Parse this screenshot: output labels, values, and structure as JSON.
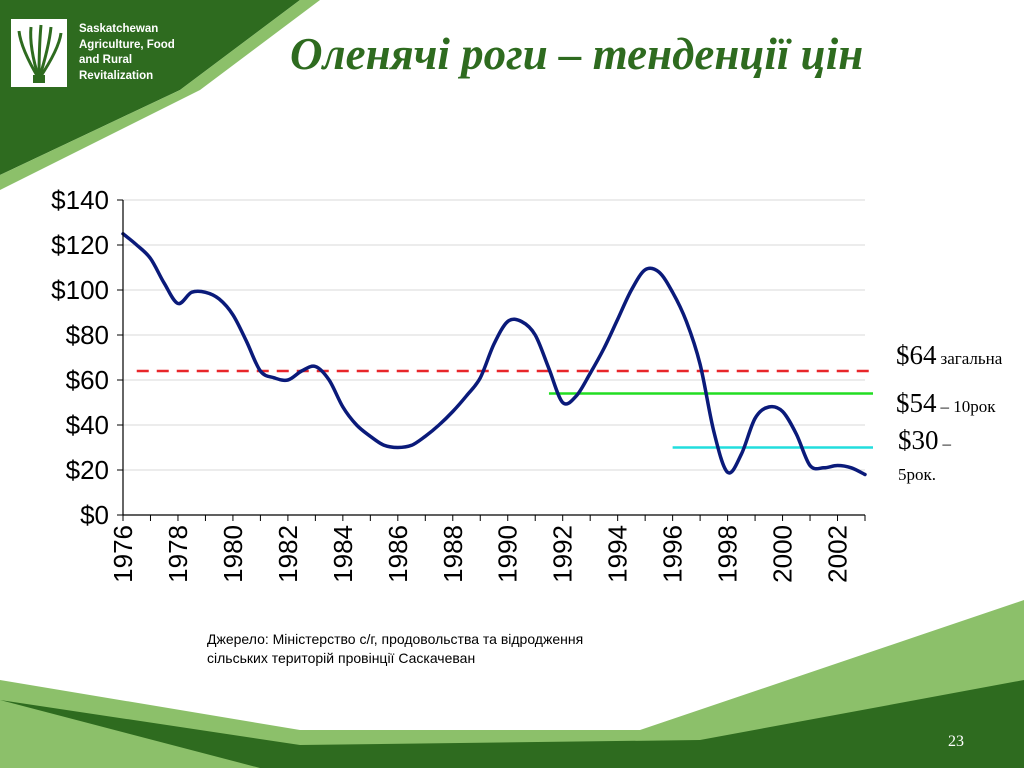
{
  "header": {
    "org_lines": [
      "Saskatchewan",
      "Agriculture, Food",
      "and Rural",
      "Revitalization"
    ],
    "title": "Оленячі роги – тенденції цін"
  },
  "chart_data": {
    "type": "line",
    "title": "",
    "xlabel": "",
    "ylabel": "",
    "xlim": [
      1976,
      2003
    ],
    "ylim": [
      0,
      140
    ],
    "y_tick_labels": [
      "$0",
      "$20",
      "$40",
      "$60",
      "$80",
      "$100",
      "$120",
      "$140"
    ],
    "y_tick_values": [
      0,
      20,
      40,
      60,
      80,
      100,
      120,
      140
    ],
    "x_tick_labels": [
      "1976",
      "1978",
      "1980",
      "1982",
      "1984",
      "1986",
      "1988",
      "1990",
      "1992",
      "1994",
      "1996",
      "1998",
      "2000",
      "2002"
    ],
    "x_tick_values": [
      1976,
      1978,
      1980,
      1982,
      1984,
      1986,
      1988,
      1990,
      1992,
      1994,
      1996,
      1998,
      2000,
      2002
    ],
    "grid": true,
    "series": [
      {
        "color": "#0a1a7a",
        "x": [
          1976,
          1976.5,
          1977,
          1977.5,
          1978,
          1978.5,
          1979,
          1979.5,
          1980,
          1980.5,
          1981,
          1981.5,
          1982,
          1982.5,
          1983,
          1983.5,
          1984,
          1984.5,
          1985,
          1985.5,
          1986,
          1986.5,
          1987,
          1987.5,
          1988,
          1988.5,
          1989,
          1989.5,
          1990,
          1990.5,
          1991,
          1991.5,
          1992,
          1992.5,
          1993,
          1993.5,
          1994,
          1994.5,
          1995,
          1995.5,
          1996,
          1996.5,
          1997,
          1997.5,
          1998,
          1998.5,
          1999,
          1999.5,
          2000,
          2000.5,
          2001,
          2001.5,
          2002,
          2002.5,
          2003
        ],
        "values": [
          125,
          120,
          114,
          103,
          94,
          99,
          99,
          96,
          89,
          77,
          64,
          61,
          60,
          64,
          66,
          60,
          48,
          40,
          35,
          31,
          30,
          31,
          35,
          40,
          46,
          53,
          61,
          76,
          86,
          86,
          80,
          65,
          50,
          53,
          63,
          74,
          87,
          100,
          109,
          108,
          99,
          86,
          67,
          37,
          19,
          27,
          43,
          48,
          46,
          36,
          22,
          21,
          22,
          21,
          18
        ]
      }
    ],
    "reference_lines": [
      {
        "value": 64,
        "color": "#e8262a",
        "style": "dashed",
        "label_value": "$64",
        "label_text": "загальна",
        "x_start": 1976.5,
        "x_end": 2003
      },
      {
        "value": 54,
        "color": "#22dd22",
        "style": "solid",
        "label_value": "$54",
        "label_text": "– 10рок",
        "x_start": 1991.5,
        "x_end": 2003
      },
      {
        "value": 30,
        "color": "#22dddd",
        "style": "solid",
        "label_value": "$30",
        "label_text": "–",
        "label_text2": "5рок.",
        "x_start": 1996,
        "x_end": 2003
      }
    ]
  },
  "footer": {
    "source_lines": [
      "Джерело: Міністерство с/г, продовольства та відродження",
      "сільських територій провінції Саскачеван"
    ],
    "page_number": "23"
  }
}
